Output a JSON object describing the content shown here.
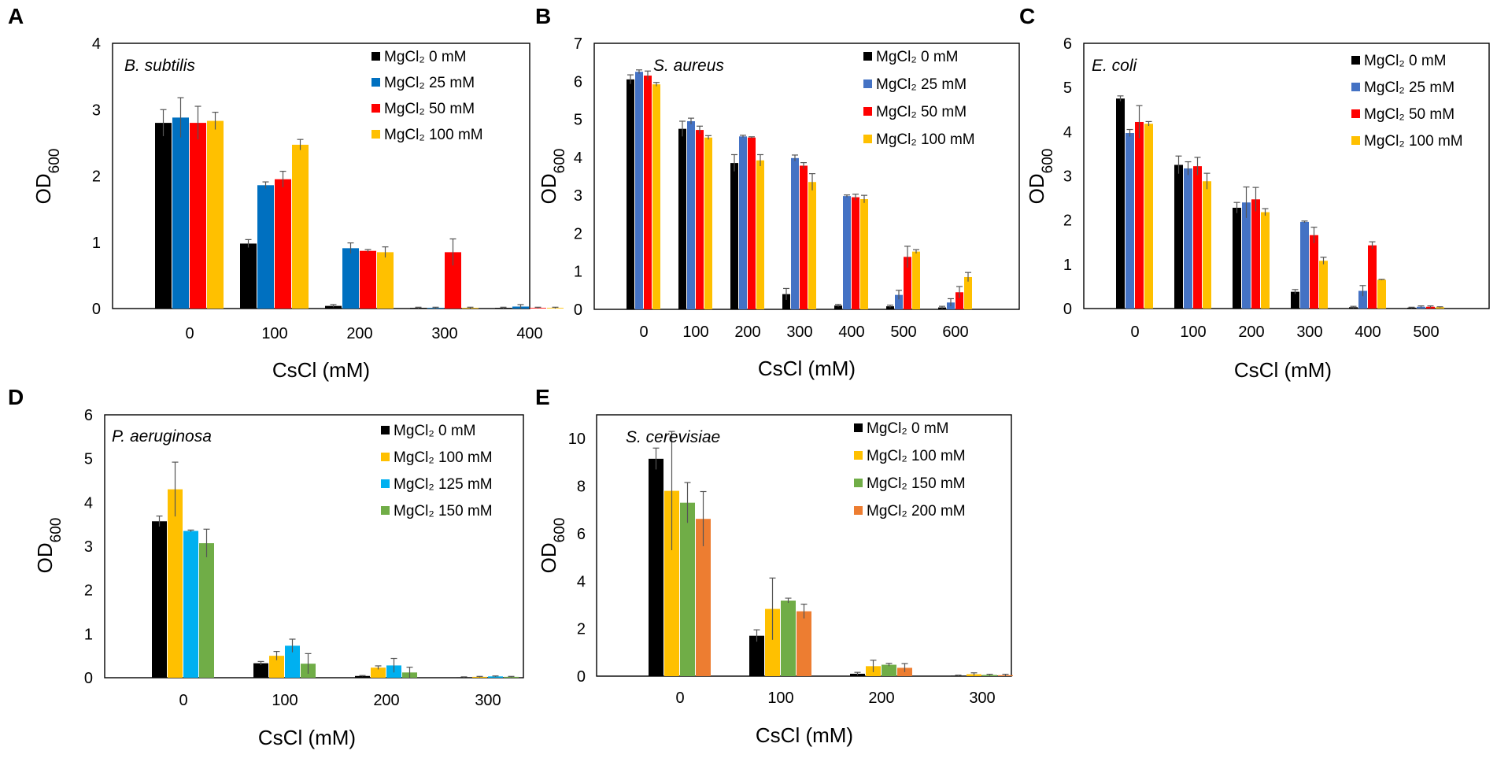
{
  "figure": {
    "description_free": true
  },
  "chart_data": [
    {
      "panel": "A",
      "type": "bar",
      "species": "B. subtilis",
      "xlabel": "CsCl (mM)",
      "ylabel": "OD",
      "ylabel_sub": "600",
      "ylim": [
        0,
        4
      ],
      "yticks": [
        0,
        1,
        2,
        3,
        4
      ],
      "categories": [
        "0",
        "100",
        "200",
        "300",
        "400"
      ],
      "legend_sep": "wide",
      "series": [
        {
          "name": "MgCl₂  0 mM",
          "color": "#000000",
          "values": [
            2.8,
            0.98,
            0.04,
            0.01,
            0.01
          ],
          "errors": [
            0.2,
            0.06,
            0.02,
            0.01,
            0.01
          ]
        },
        {
          "name": "MgCl₂  25 mM",
          "color": "#0070C0",
          "values": [
            2.88,
            1.86,
            0.91,
            0.01,
            0.03
          ],
          "errors": [
            0.3,
            0.05,
            0.08,
            0.01,
            0.03
          ]
        },
        {
          "name": "MgCl₂  50 mM",
          "color": "#FF0000",
          "values": [
            2.8,
            1.95,
            0.87,
            0.85,
            0.01
          ],
          "errors": [
            0.25,
            0.12,
            0.02,
            0.2,
            0.01
          ]
        },
        {
          "name": "MgCl₂  100 mM",
          "color": "#FFC000",
          "values": [
            2.83,
            2.47,
            0.85,
            0.01,
            0.01
          ],
          "errors": [
            0.13,
            0.08,
            0.08,
            0.01,
            0.01
          ]
        }
      ]
    },
    {
      "panel": "B",
      "type": "bar",
      "species": "S. aureus",
      "xlabel": "CsCl (mM)",
      "ylabel": "OD",
      "ylabel_sub": "600",
      "ylim": [
        0,
        7
      ],
      "yticks": [
        0,
        1,
        2,
        3,
        4,
        5,
        6,
        7
      ],
      "categories": [
        "0",
        "100",
        "200",
        "300",
        "400",
        "500",
        "600"
      ],
      "series": [
        {
          "name": "MgCl₂  0 mM",
          "color": "#000000",
          "values": [
            6.05,
            4.75,
            3.85,
            0.4,
            0.1,
            0.08,
            0.05
          ],
          "errors": [
            0.12,
            0.2,
            0.22,
            0.15,
            0.03,
            0.03,
            0.03
          ]
        },
        {
          "name": "MgCl₂  25 mM",
          "color": "#4472C4",
          "values": [
            6.25,
            4.95,
            4.55,
            3.98,
            2.98,
            0.38,
            0.18
          ],
          "errors": [
            0.05,
            0.08,
            0.03,
            0.08,
            0.03,
            0.12,
            0.1
          ]
        },
        {
          "name": "MgCl₂  50 mM",
          "color": "#FF0000",
          "values": [
            6.15,
            4.72,
            4.52,
            3.78,
            2.95,
            1.38,
            0.45
          ],
          "errors": [
            0.12,
            0.1,
            0.02,
            0.08,
            0.08,
            0.28,
            0.15
          ]
        },
        {
          "name": "MgCl₂  100 mM",
          "color": "#FFC000",
          "values": [
            5.92,
            4.52,
            3.92,
            3.35,
            2.9,
            1.52,
            0.85
          ],
          "errors": [
            0.05,
            0.05,
            0.15,
            0.22,
            0.1,
            0.05,
            0.12
          ]
        }
      ]
    },
    {
      "panel": "C",
      "type": "bar",
      "species": "E. coli",
      "xlabel": "CsCl (mM)",
      "ylabel": "OD",
      "ylabel_sub": "600",
      "ylim": [
        0,
        6
      ],
      "yticks": [
        0,
        1,
        2,
        3,
        4,
        5,
        6
      ],
      "categories": [
        "0",
        "100",
        "200",
        "300",
        "400",
        "500"
      ],
      "series": [
        {
          "name": "MgCl₂ 0 mM",
          "color": "#000000",
          "values": [
            4.75,
            3.25,
            2.28,
            0.38,
            0.03,
            0.02
          ],
          "errors": [
            0.06,
            0.2,
            0.12,
            0.05,
            0.02,
            0.01
          ]
        },
        {
          "name": "MgCl₂ 25 mM",
          "color": "#4472C4",
          "values": [
            3.97,
            3.17,
            2.4,
            1.96,
            0.4,
            0.04
          ],
          "errors": [
            0.08,
            0.15,
            0.35,
            0.02,
            0.12,
            0.02
          ]
        },
        {
          "name": "MgCl₂ 50 mM",
          "color": "#FF0000",
          "values": [
            4.22,
            3.22,
            2.47,
            1.66,
            1.43,
            0.04
          ],
          "errors": [
            0.37,
            0.2,
            0.27,
            0.18,
            0.08,
            0.02
          ]
        },
        {
          "name": "MgCl₂ 100 mM",
          "color": "#FFC000",
          "values": [
            4.18,
            2.88,
            2.18,
            1.08,
            0.65,
            0.03
          ],
          "errors": [
            0.05,
            0.18,
            0.08,
            0.08,
            0.01,
            0.01
          ]
        }
      ]
    },
    {
      "panel": "D",
      "type": "bar",
      "species": "P. aeruginosa",
      "xlabel": "CsCl (mM)",
      "ylabel": "OD",
      "ylabel_sub": "600",
      "ylim": [
        0,
        6
      ],
      "yticks": [
        0,
        1,
        2,
        3,
        4,
        5,
        6
      ],
      "categories": [
        "0",
        "100",
        "200",
        "300"
      ],
      "series": [
        {
          "name": "MgCl₂ 0 mM",
          "color": "#000000",
          "values": [
            3.57,
            0.33,
            0.04,
            0.01
          ],
          "errors": [
            0.12,
            0.04,
            0.01,
            0.01
          ]
        },
        {
          "name": "MgCl₂ 100 mM",
          "color": "#FFC000",
          "values": [
            4.3,
            0.5,
            0.23,
            0.02
          ],
          "errors": [
            0.62,
            0.1,
            0.04,
            0.01
          ]
        },
        {
          "name": "MgCl₂ 125 mM",
          "color": "#00B0F0",
          "values": [
            3.35,
            0.73,
            0.28,
            0.03
          ],
          "errors": [
            0.02,
            0.15,
            0.16,
            0.01
          ]
        },
        {
          "name": "MgCl₂ 150 mM",
          "color": "#70AD47",
          "values": [
            3.07,
            0.32,
            0.12,
            0.02
          ],
          "errors": [
            0.32,
            0.23,
            0.12,
            0.01
          ]
        }
      ]
    },
    {
      "panel": "E",
      "type": "bar",
      "species": "S. cerevisiae",
      "xlabel": "CsCl (mM)",
      "ylabel": "OD",
      "ylabel_sub": "600",
      "ylim": [
        0,
        11
      ],
      "yticks": [
        0,
        2,
        4,
        6,
        8,
        10
      ],
      "categories": [
        "0",
        "100",
        "200",
        "300"
      ],
      "series": [
        {
          "name": "MgCl₂ 0 mM",
          "color": "#000000",
          "values": [
            9.15,
            1.7,
            0.1,
            0.02
          ],
          "errors": [
            0.45,
            0.25,
            0.06,
            0.02
          ]
        },
        {
          "name": "MgCl₂ 100 mM",
          "color": "#FFC000",
          "values": [
            7.8,
            2.83,
            0.42,
            0.08
          ],
          "errors": [
            2.5,
            1.3,
            0.25,
            0.06
          ]
        },
        {
          "name": "MgCl₂ 150 mM",
          "color": "#70AD47",
          "values": [
            7.3,
            3.18,
            0.48,
            0.05
          ],
          "errors": [
            0.85,
            0.1,
            0.06,
            0.03
          ]
        },
        {
          "name": "MgCl₂ 200 mM",
          "color": "#ED7D31",
          "values": [
            6.62,
            2.73,
            0.35,
            0.04
          ],
          "errors": [
            1.15,
            0.3,
            0.18,
            0.04
          ]
        }
      ]
    }
  ]
}
